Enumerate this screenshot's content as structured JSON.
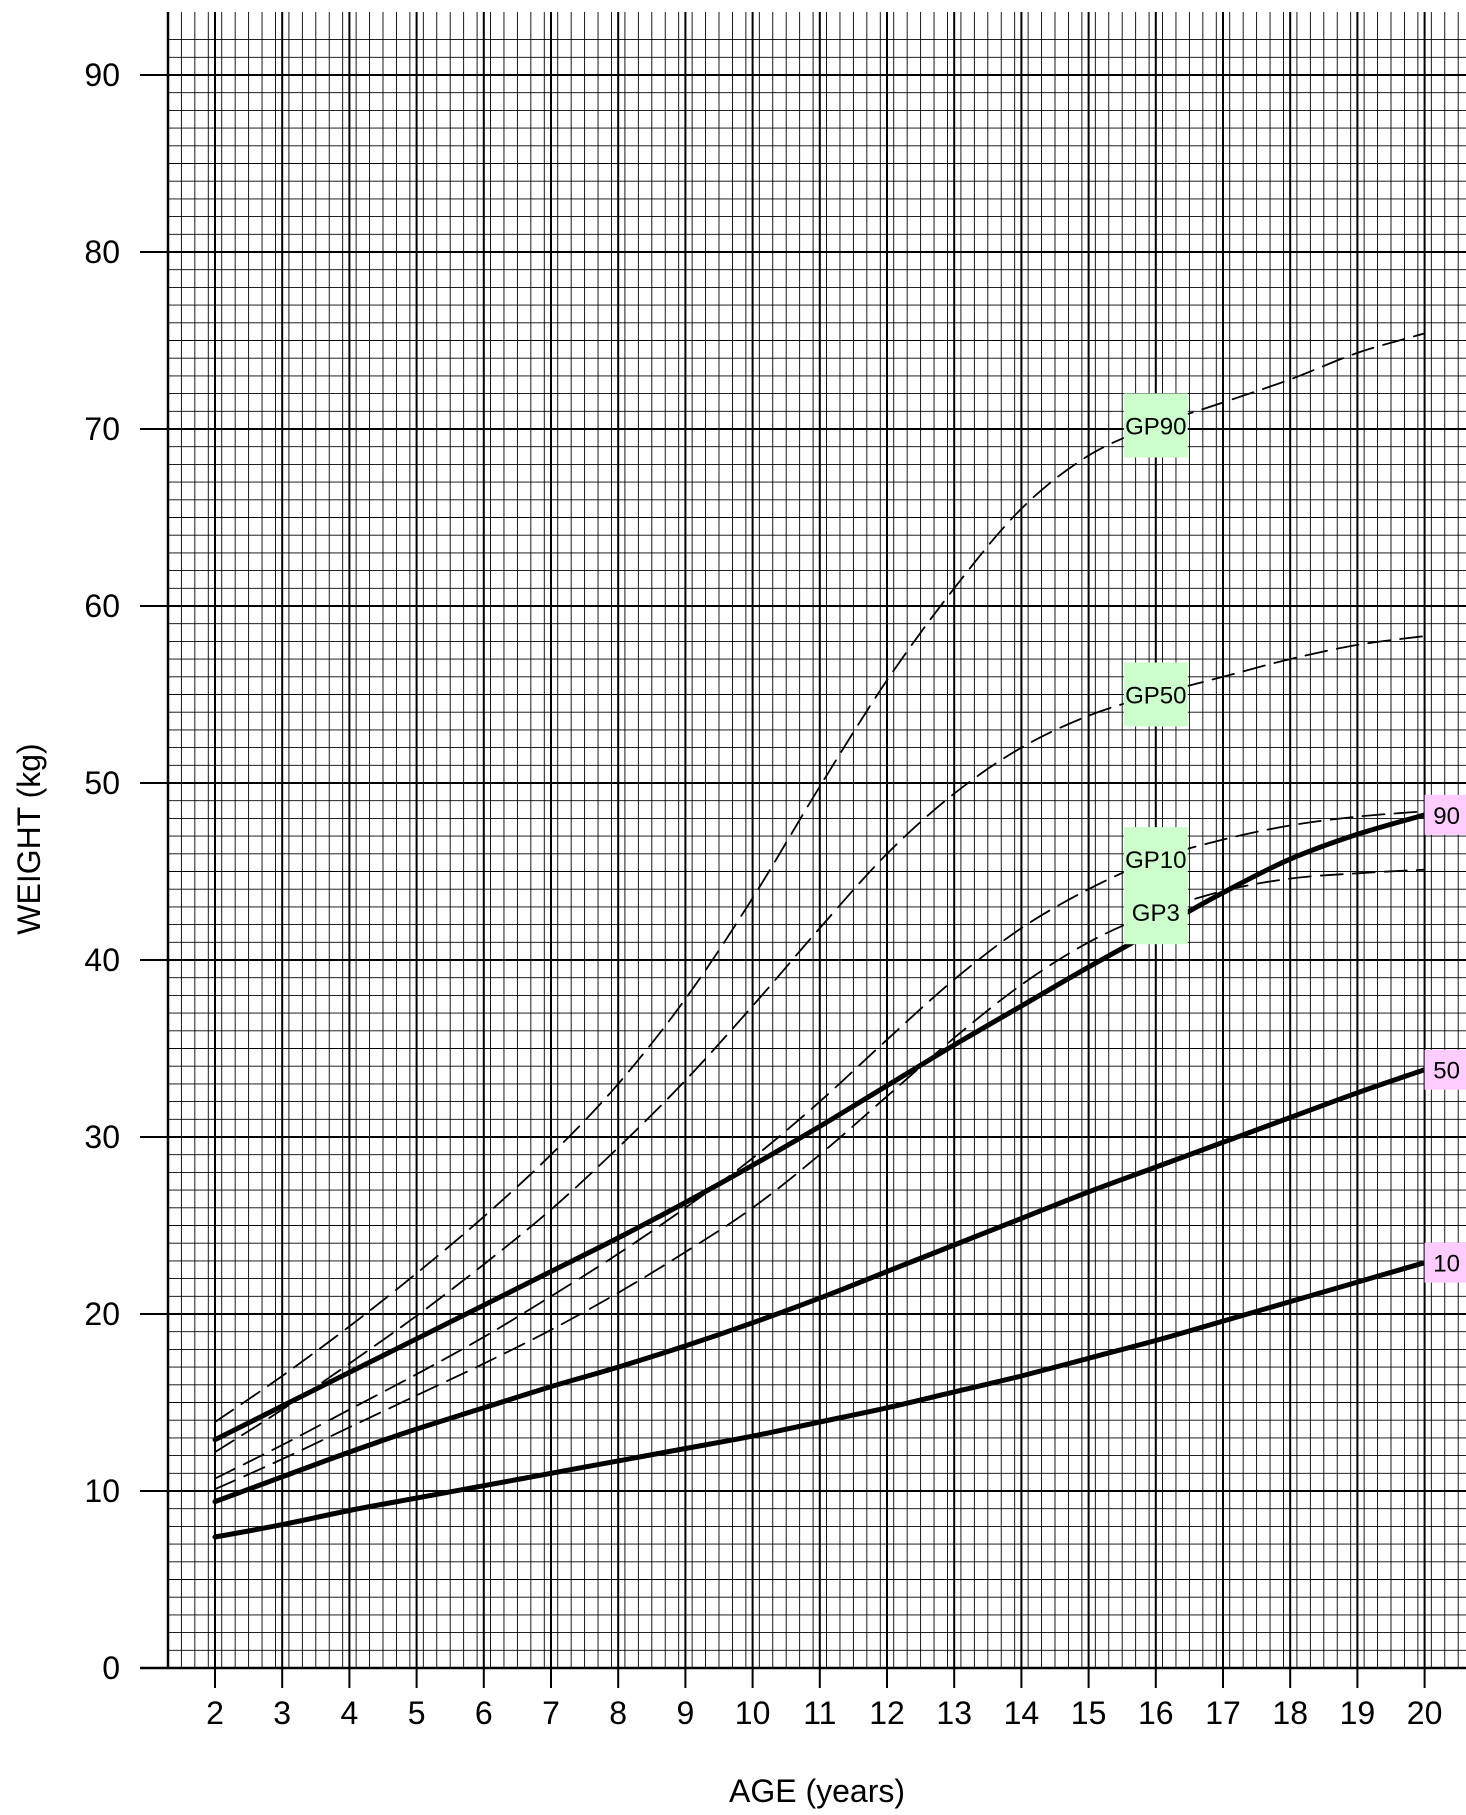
{
  "chart_data": {
    "type": "line",
    "title": "",
    "xlabel": "AGE (years)",
    "ylabel": "WEIGHT (kg)",
    "xlim": [
      1.3,
      20.6
    ],
    "ylim": [
      0,
      92
    ],
    "x_ticks": [
      2,
      3,
      4,
      5,
      6,
      7,
      8,
      9,
      10,
      11,
      12,
      13,
      14,
      15,
      16,
      17,
      18,
      19,
      20
    ],
    "y_ticks": [
      0,
      10,
      20,
      30,
      40,
      50,
      60,
      70,
      80,
      90
    ],
    "grid": true,
    "x_minor_step": 0.2,
    "y_minor_step": 1,
    "label_fill_solid": "#ffccff",
    "label_fill_dashed": "#ccffcc",
    "series": [
      {
        "name": "90",
        "style": "solid",
        "label_at": "end",
        "points": [
          [
            2,
            12.9
          ],
          [
            3,
            14.8
          ],
          [
            4,
            16.7
          ],
          [
            5,
            18.6
          ],
          [
            6,
            20.5
          ],
          [
            7,
            22.4
          ],
          [
            8,
            24.3
          ],
          [
            9,
            26.3
          ],
          [
            10,
            28.4
          ],
          [
            11,
            30.6
          ],
          [
            12,
            32.9
          ],
          [
            13,
            35.2
          ],
          [
            14,
            37.4
          ],
          [
            15,
            39.6
          ],
          [
            16,
            41.7
          ],
          [
            17,
            43.8
          ],
          [
            18,
            45.7
          ],
          [
            19,
            47.1
          ],
          [
            20,
            48.2
          ]
        ]
      },
      {
        "name": "50",
        "style": "solid",
        "label_at": "end",
        "points": [
          [
            2,
            9.4
          ],
          [
            3,
            10.8
          ],
          [
            4,
            12.2
          ],
          [
            5,
            13.5
          ],
          [
            6,
            14.7
          ],
          [
            7,
            15.9
          ],
          [
            8,
            17.0
          ],
          [
            9,
            18.2
          ],
          [
            10,
            19.5
          ],
          [
            11,
            20.9
          ],
          [
            12,
            22.4
          ],
          [
            13,
            23.9
          ],
          [
            14,
            25.4
          ],
          [
            15,
            26.9
          ],
          [
            16,
            28.3
          ],
          [
            17,
            29.7
          ],
          [
            18,
            31.1
          ],
          [
            19,
            32.5
          ],
          [
            20,
            33.8
          ]
        ]
      },
      {
        "name": "10",
        "style": "solid",
        "label_at": "end",
        "points": [
          [
            2,
            7.4
          ],
          [
            3,
            8.1
          ],
          [
            4,
            8.9
          ],
          [
            5,
            9.6
          ],
          [
            6,
            10.3
          ],
          [
            7,
            11.0
          ],
          [
            8,
            11.7
          ],
          [
            9,
            12.4
          ],
          [
            10,
            13.1
          ],
          [
            11,
            13.9
          ],
          [
            12,
            14.7
          ],
          [
            13,
            15.6
          ],
          [
            14,
            16.5
          ],
          [
            15,
            17.5
          ],
          [
            16,
            18.5
          ],
          [
            17,
            19.6
          ],
          [
            18,
            20.7
          ],
          [
            19,
            21.8
          ],
          [
            20,
            22.9
          ]
        ]
      },
      {
        "name": "GP90",
        "style": "dashed",
        "label_at": 16,
        "points": [
          [
            2,
            13.9
          ],
          [
            3,
            16.5
          ],
          [
            4,
            19.3
          ],
          [
            5,
            22.3
          ],
          [
            6,
            25.5
          ],
          [
            7,
            29.0
          ],
          [
            8,
            33.0
          ],
          [
            9,
            37.8
          ],
          [
            10,
            43.5
          ],
          [
            11,
            49.8
          ],
          [
            12,
            55.8
          ],
          [
            13,
            61.0
          ],
          [
            14,
            65.5
          ],
          [
            15,
            68.5
          ],
          [
            16,
            70.2
          ],
          [
            17,
            71.5
          ],
          [
            18,
            72.8
          ],
          [
            19,
            74.3
          ],
          [
            20,
            75.4
          ]
        ]
      },
      {
        "name": "GP50",
        "style": "dashed",
        "label_at": 16,
        "points": [
          [
            2,
            12.2
          ],
          [
            3,
            14.6
          ],
          [
            4,
            17.2
          ],
          [
            5,
            19.9
          ],
          [
            6,
            22.8
          ],
          [
            7,
            25.9
          ],
          [
            8,
            29.4
          ],
          [
            9,
            33.2
          ],
          [
            10,
            37.4
          ],
          [
            11,
            41.8
          ],
          [
            12,
            46.0
          ],
          [
            13,
            49.4
          ],
          [
            14,
            52.0
          ],
          [
            15,
            53.8
          ],
          [
            16,
            55.0
          ],
          [
            17,
            56.0
          ],
          [
            18,
            57.0
          ],
          [
            19,
            57.8
          ],
          [
            20,
            58.3
          ]
        ]
      },
      {
        "name": "GP10",
        "style": "dashed",
        "label_at": 16,
        "points": [
          [
            2,
            10.7
          ],
          [
            3,
            12.6
          ],
          [
            4,
            14.6
          ],
          [
            5,
            16.6
          ],
          [
            6,
            18.7
          ],
          [
            7,
            21.0
          ],
          [
            8,
            23.4
          ],
          [
            9,
            26.0
          ],
          [
            10,
            28.8
          ],
          [
            11,
            32.0
          ],
          [
            12,
            35.5
          ],
          [
            13,
            38.9
          ],
          [
            14,
            41.8
          ],
          [
            15,
            44.0
          ],
          [
            16,
            45.7
          ],
          [
            17,
            46.8
          ],
          [
            18,
            47.6
          ],
          [
            19,
            48.1
          ],
          [
            20,
            48.4
          ]
        ]
      },
      {
        "name": "GP3",
        "style": "dashed",
        "label_at": 16,
        "points": [
          [
            2,
            10.1
          ],
          [
            3,
            11.8
          ],
          [
            4,
            13.6
          ],
          [
            5,
            15.4
          ],
          [
            6,
            17.2
          ],
          [
            7,
            19.1
          ],
          [
            8,
            21.2
          ],
          [
            9,
            23.5
          ],
          [
            10,
            26.0
          ],
          [
            11,
            29.0
          ],
          [
            12,
            32.3
          ],
          [
            13,
            35.6
          ],
          [
            14,
            38.6
          ],
          [
            15,
            41.0
          ],
          [
            16,
            42.7
          ],
          [
            17,
            43.9
          ],
          [
            18,
            44.6
          ],
          [
            19,
            44.9
          ],
          [
            20,
            45.1
          ]
        ]
      }
    ]
  }
}
